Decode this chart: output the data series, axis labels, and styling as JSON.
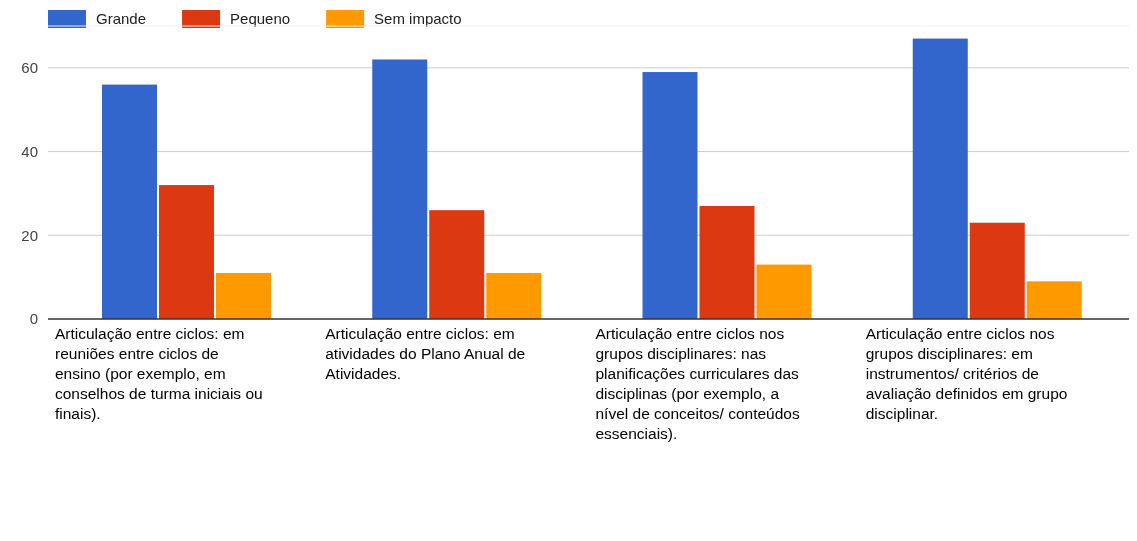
{
  "chart_data": {
    "type": "bar",
    "categories": [
      "Articulação entre ciclos: em reuniões entre ciclos de ensino (por exemplo, em conselhos de turma iniciais ou finais).",
      "Articulação entre ciclos: em atividades do Plano Anual de Atividades.",
      "Articulação entre ciclos nos grupos disciplinares: nas planificações curriculares das disciplinas (por exemplo, a nível de conceitos/ conteúdos essenciais).",
      "Articulação entre ciclos nos grupos disciplinares: em instrumentos/ critérios de avaliação definidos em grupo disciplinar."
    ],
    "series": [
      {
        "name": "Grande",
        "color": "#3366cc",
        "values": [
          56,
          62,
          59,
          67
        ]
      },
      {
        "name": "Pequeno",
        "color": "#dc3912",
        "values": [
          32,
          26,
          27,
          23
        ]
      },
      {
        "name": "Sem impacto",
        "color": "#ff9900",
        "values": [
          11,
          11,
          13,
          9
        ]
      }
    ],
    "ylim": [
      0,
      70
    ],
    "yticks": [
      0,
      20,
      40,
      60
    ],
    "grid": "y",
    "legend": "top left"
  }
}
